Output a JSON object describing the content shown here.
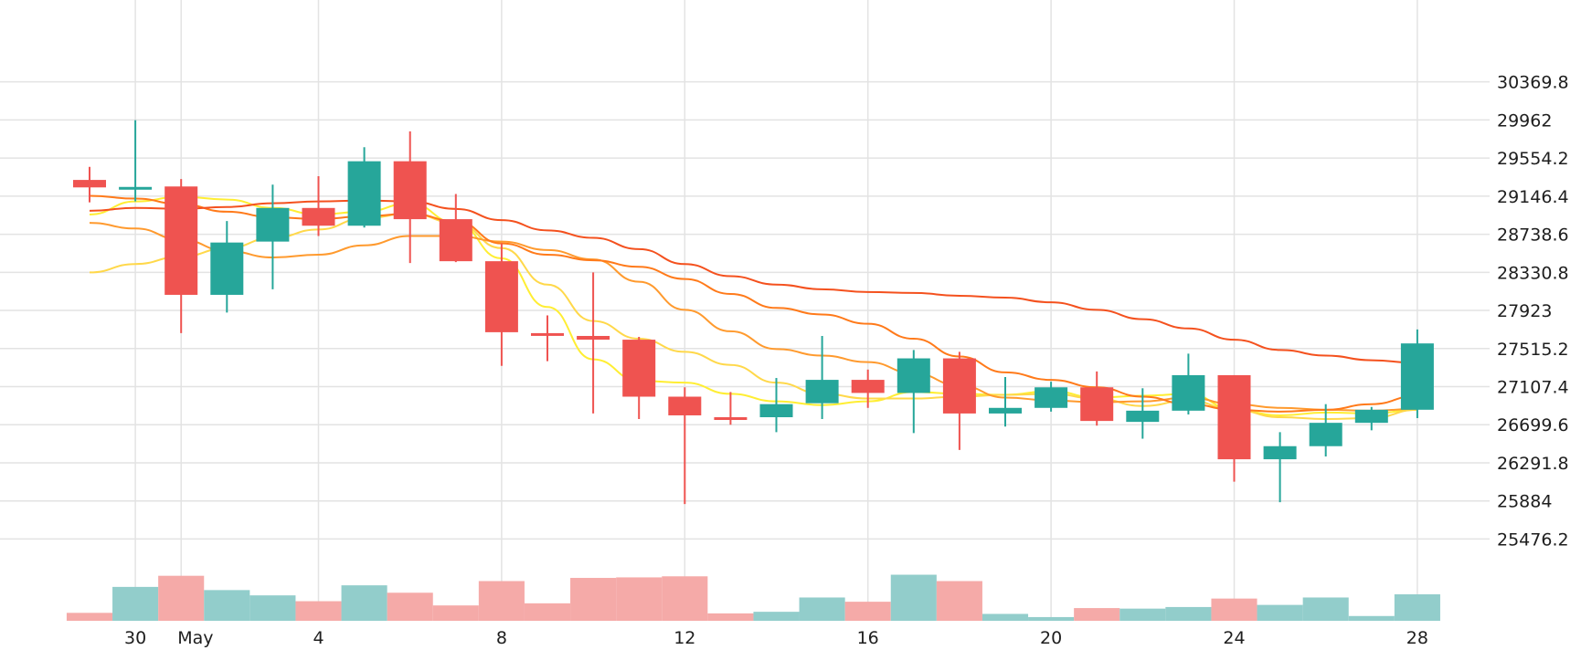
{
  "chart_data": {
    "type": "candlestick",
    "title": "",
    "xlabel": "",
    "ylabel": "",
    "x_ticks": [
      {
        "date": "2023-04-30",
        "label": "30"
      },
      {
        "date": "2023-05-01",
        "label": "May"
      },
      {
        "date": "2023-05-04",
        "label": "4"
      },
      {
        "date": "2023-05-08",
        "label": "8"
      },
      {
        "date": "2023-05-12",
        "label": "12"
      },
      {
        "date": "2023-05-16",
        "label": "16"
      },
      {
        "date": "2023-05-20",
        "label": "20"
      },
      {
        "date": "2023-05-24",
        "label": "24"
      },
      {
        "date": "2023-05-28",
        "label": "28"
      }
    ],
    "y_ticks": [
      "30369.8",
      "29962",
      "29554.2",
      "29146.4",
      "28738.6",
      "28330.8",
      "27923",
      "27515.2",
      "27107.4",
      "26699.6",
      "26291.8",
      "25884",
      "25476.2"
    ],
    "ylim": [
      25070,
      30777
    ],
    "grid": true,
    "colors": {
      "up": "#26a69a",
      "down": "#ef5350",
      "up_volume": "#92cdcb",
      "down_volume": "#f5aaa8",
      "grid": "#e3e3e3"
    },
    "candles": [
      {
        "date": "2023-04-29",
        "open": 29320,
        "high": 29460,
        "low": 29080,
        "close": 29240
      },
      {
        "date": "2023-04-30",
        "open": 29230,
        "high": 29960,
        "low": 29090,
        "close": 29245
      },
      {
        "date": "2023-05-01",
        "open": 29250,
        "high": 29330,
        "low": 27680,
        "close": 28090
      },
      {
        "date": "2023-05-02",
        "open": 28090,
        "high": 28880,
        "low": 27900,
        "close": 28650
      },
      {
        "date": "2023-05-03",
        "open": 28660,
        "high": 29270,
        "low": 28150,
        "close": 29020
      },
      {
        "date": "2023-05-04",
        "open": 29020,
        "high": 29360,
        "low": 28720,
        "close": 28830
      },
      {
        "date": "2023-05-05",
        "open": 28830,
        "high": 29670,
        "low": 28810,
        "close": 29520
      },
      {
        "date": "2023-05-06",
        "open": 29520,
        "high": 29840,
        "low": 28430,
        "close": 28900
      },
      {
        "date": "2023-05-07",
        "open": 28900,
        "high": 29170,
        "low": 28440,
        "close": 28450
      },
      {
        "date": "2023-05-08",
        "open": 28450,
        "high": 28640,
        "low": 27330,
        "close": 27690
      },
      {
        "date": "2023-05-09",
        "open": 27680,
        "high": 27870,
        "low": 27380,
        "close": 27660
      },
      {
        "date": "2023-05-10",
        "open": 27650,
        "high": 28330,
        "low": 26820,
        "close": 27610
      },
      {
        "date": "2023-05-11",
        "open": 27610,
        "high": 27640,
        "low": 26760,
        "close": 27000
      },
      {
        "date": "2023-05-12",
        "open": 27000,
        "high": 27100,
        "low": 25850,
        "close": 26800
      },
      {
        "date": "2023-05-13",
        "open": 26780,
        "high": 27050,
        "low": 26700,
        "close": 26760
      },
      {
        "date": "2023-05-14",
        "open": 26780,
        "high": 27200,
        "low": 26620,
        "close": 26920
      },
      {
        "date": "2023-05-15",
        "open": 26930,
        "high": 27650,
        "low": 26760,
        "close": 27180
      },
      {
        "date": "2023-05-16",
        "open": 27180,
        "high": 27290,
        "low": 26880,
        "close": 27040
      },
      {
        "date": "2023-05-17",
        "open": 27040,
        "high": 27500,
        "low": 26610,
        "close": 27410
      },
      {
        "date": "2023-05-18",
        "open": 27410,
        "high": 27480,
        "low": 26430,
        "close": 26820
      },
      {
        "date": "2023-05-19",
        "open": 26820,
        "high": 27210,
        "low": 26680,
        "close": 26880
      },
      {
        "date": "2023-05-20",
        "open": 26880,
        "high": 27160,
        "low": 26840,
        "close": 27100
      },
      {
        "date": "2023-05-21",
        "open": 27100,
        "high": 27270,
        "low": 26690,
        "close": 26740
      },
      {
        "date": "2023-05-22",
        "open": 26730,
        "high": 27090,
        "low": 26550,
        "close": 26850
      },
      {
        "date": "2023-05-23",
        "open": 26850,
        "high": 27460,
        "low": 26810,
        "close": 27230
      },
      {
        "date": "2023-05-24",
        "open": 27230,
        "high": 27230,
        "low": 26090,
        "close": 26330
      },
      {
        "date": "2023-05-25",
        "open": 26330,
        "high": 26620,
        "low": 25870,
        "close": 26470
      },
      {
        "date": "2023-05-26",
        "open": 26470,
        "high": 26920,
        "low": 26360,
        "close": 26720
      },
      {
        "date": "2023-05-27",
        "open": 26720,
        "high": 26890,
        "low": 26640,
        "close": 26860
      },
      {
        "date": "2023-05-28",
        "open": 26860,
        "high": 27720,
        "low": 26770,
        "close": 27570
      }
    ],
    "volume": [
      0.15,
      0.64,
      0.85,
      0.58,
      0.48,
      0.37,
      0.67,
      0.53,
      0.29,
      0.75,
      0.33,
      0.81,
      0.82,
      0.84,
      0.14,
      0.17,
      0.44,
      0.36,
      0.87,
      0.75,
      0.13,
      0.07,
      0.24,
      0.23,
      0.26,
      0.42,
      0.3,
      0.44,
      0.09,
      0.5
    ],
    "moving_averages": [
      {
        "color": "#ffee33",
        "values": [
          28950,
          29090,
          29140,
          29110,
          29020,
          28950,
          28980,
          29070,
          28860,
          28480,
          27960,
          27400,
          27170,
          27150,
          27030,
          26950,
          26910,
          26950,
          27050,
          27030,
          27020,
          27060,
          26990,
          27010,
          27030,
          26860,
          26800,
          26830,
          26820,
          26860
        ]
      },
      {
        "color": "#ffd84a",
        "values": [
          28330,
          28420,
          28500,
          28590,
          28700,
          28790,
          28910,
          28960,
          28860,
          28590,
          28200,
          27810,
          27620,
          27480,
          27340,
          27150,
          27030,
          26980,
          26980,
          27000,
          27020,
          27030,
          26980,
          26900,
          26960,
          26860,
          26780,
          26760,
          26770,
          26860
        ]
      },
      {
        "color": "#ff9a2e",
        "values": [
          28860,
          28800,
          28680,
          28560,
          28490,
          28520,
          28620,
          28720,
          28720,
          28660,
          28570,
          28470,
          28230,
          27930,
          27700,
          27510,
          27440,
          27370,
          27250,
          27120,
          26990,
          26960,
          26940,
          26950,
          26990,
          26920,
          26880,
          26860,
          26850,
          26870
        ]
      },
      {
        "color": "#ff7a1a",
        "values": [
          29150,
          29120,
          29060,
          28980,
          28920,
          28900,
          28930,
          28960,
          28880,
          28640,
          28520,
          28460,
          28390,
          28260,
          28100,
          27950,
          27880,
          27780,
          27620,
          27430,
          27260,
          27180,
          27100,
          27000,
          26920,
          26860,
          26840,
          26860,
          26920,
          27010
        ]
      },
      {
        "color": "#f4511e",
        "values": [
          28990,
          29020,
          29010,
          29030,
          29070,
          29090,
          29100,
          29090,
          29010,
          28890,
          28780,
          28700,
          28580,
          28420,
          28290,
          28200,
          28150,
          28120,
          28110,
          28080,
          28060,
          28010,
          27930,
          27830,
          27730,
          27610,
          27500,
          27440,
          27390,
          27360
        ]
      }
    ]
  }
}
